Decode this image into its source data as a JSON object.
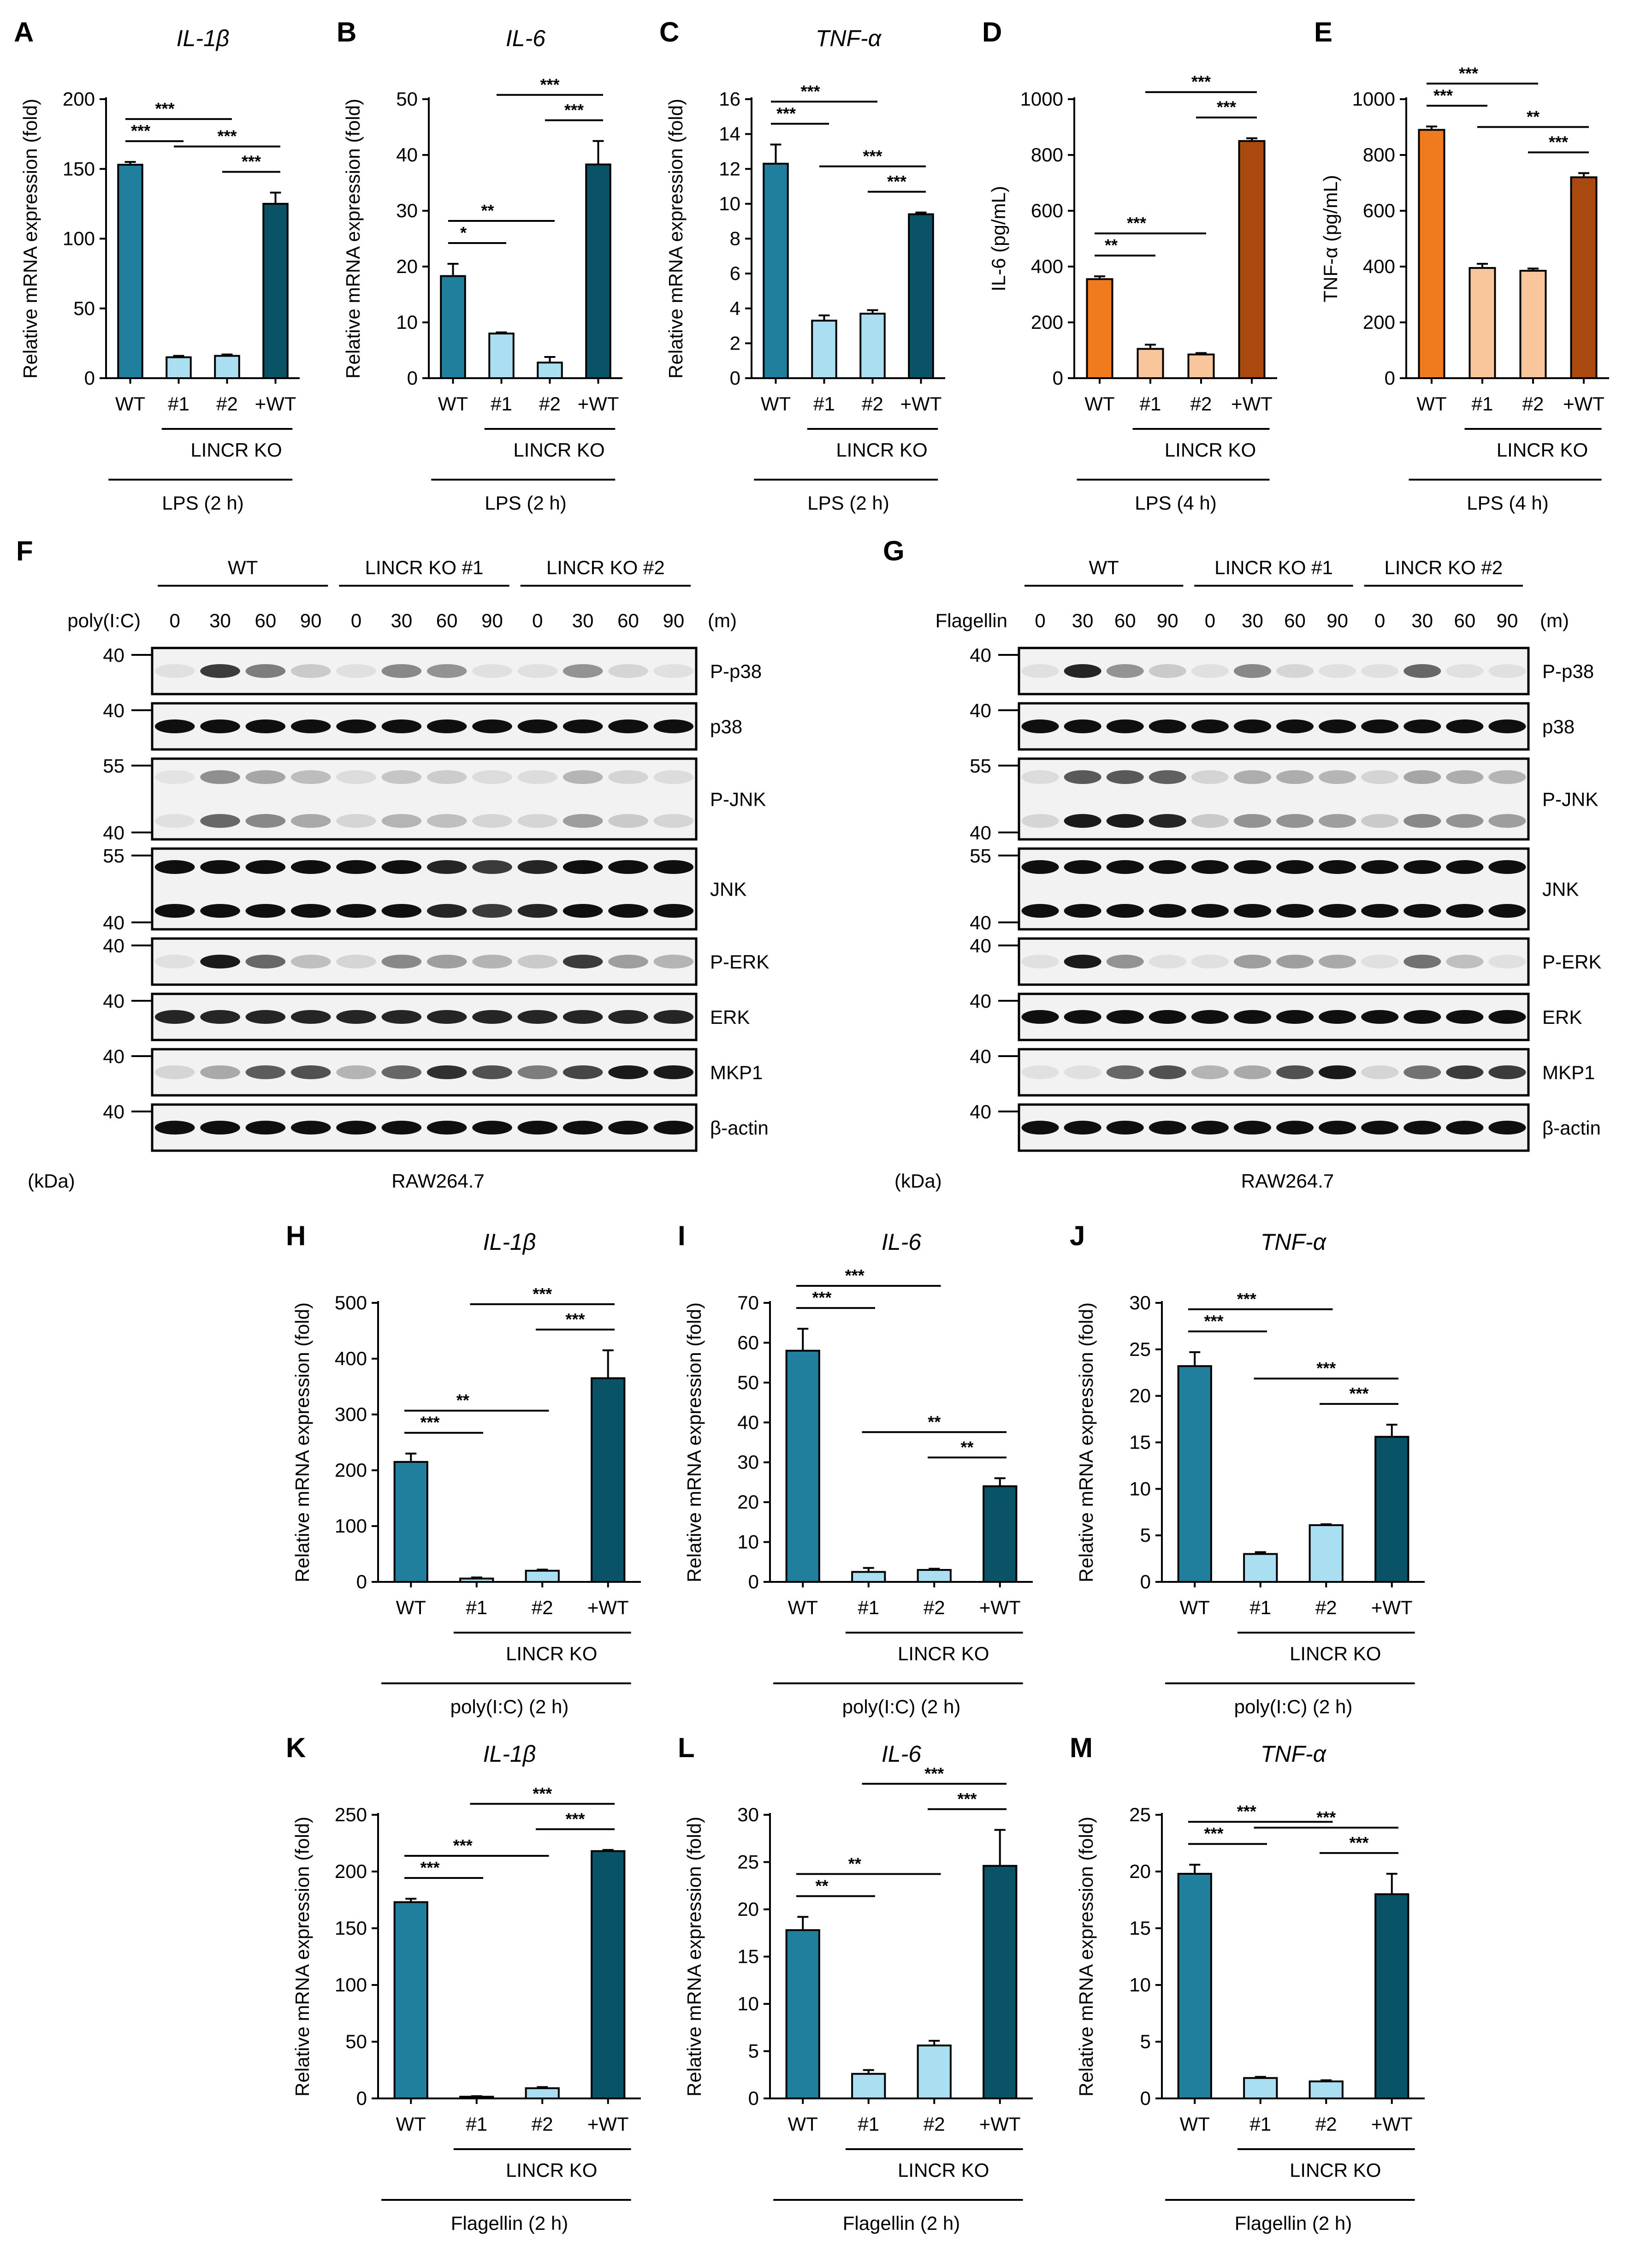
{
  "figure": {
    "colors": {
      "teal": "#1f7f9c",
      "light_blue": "#a9dff0",
      "dark_teal": "#0a5367",
      "orange": "#f07a1e",
      "peach": "#f9c59a",
      "brown": "#a9480f"
    },
    "common": {
      "x_labels": [
        "WT",
        "#1",
        "#2",
        "+WT"
      ],
      "group_label": "LINCR KO",
      "ylabel_mrna": "Relative mRNA expression (fold)"
    }
  },
  "chart_data": [
    {
      "letter": "A",
      "type": "bar",
      "title": "IL-1β",
      "ylabel": "Relative mRNA expression (fold)",
      "ylim": [
        0,
        200
      ],
      "yticks": [
        0,
        50,
        100,
        150,
        200
      ],
      "categories": [
        "WT",
        "#1",
        "#2",
        "+WT"
      ],
      "values": [
        153,
        15,
        16,
        125
      ],
      "errors": [
        2,
        1,
        1,
        8
      ],
      "condition": "LPS (2 h)",
      "bar_colors": [
        "teal",
        "light_blue",
        "light_blue",
        "dark_teal"
      ],
      "significance": [
        {
          "from": 0,
          "to": 1,
          "label": "***"
        },
        {
          "from": 0,
          "to": 2,
          "label": "***"
        },
        {
          "from": 2,
          "to": 3,
          "label": "***"
        },
        {
          "from": 1,
          "to": 3,
          "label": "***"
        }
      ]
    },
    {
      "letter": "B",
      "type": "bar",
      "title": "IL-6",
      "ylabel": "Relative mRNA expression (fold)",
      "ylim": [
        0,
        50
      ],
      "yticks": [
        0,
        10,
        20,
        30,
        40,
        50
      ],
      "categories": [
        "WT",
        "#1",
        "#2",
        "+WT"
      ],
      "values": [
        18.3,
        8,
        2.8,
        38.3
      ],
      "errors": [
        2.2,
        0.2,
        1,
        4.2
      ],
      "condition": "LPS (2 h)",
      "bar_colors": [
        "teal",
        "light_blue",
        "light_blue",
        "dark_teal"
      ],
      "significance": [
        {
          "from": 0,
          "to": 1,
          "label": "*"
        },
        {
          "from": 0,
          "to": 2,
          "label": "**"
        },
        {
          "from": 2,
          "to": 3,
          "label": "***"
        },
        {
          "from": 1,
          "to": 3,
          "label": "***"
        }
      ]
    },
    {
      "letter": "C",
      "type": "bar",
      "title": "TNF-α",
      "ylabel": "Relative mRNA expression (fold)",
      "ylim": [
        0,
        16
      ],
      "yticks": [
        0,
        2,
        4,
        6,
        8,
        10,
        12,
        14,
        16
      ],
      "categories": [
        "WT",
        "#1",
        "#2",
        "+WT"
      ],
      "values": [
        12.3,
        3.3,
        3.7,
        9.4
      ],
      "errors": [
        1.1,
        0.3,
        0.2,
        0.1
      ],
      "condition": "LPS (2 h)",
      "bar_colors": [
        "teal",
        "light_blue",
        "light_blue",
        "dark_teal"
      ],
      "significance": [
        {
          "from": 0,
          "to": 1,
          "label": "***"
        },
        {
          "from": 0,
          "to": 2,
          "label": "***"
        },
        {
          "from": 2,
          "to": 3,
          "label": "***"
        },
        {
          "from": 1,
          "to": 3,
          "label": "***"
        }
      ]
    },
    {
      "letter": "D",
      "type": "bar",
      "title": "",
      "ylabel": "IL-6 (pg/mL)",
      "ylim": [
        0,
        1000
      ],
      "yticks": [
        0,
        200,
        400,
        600,
        800,
        1000
      ],
      "categories": [
        "WT",
        "#1",
        "#2",
        "+WT"
      ],
      "values": [
        355,
        105,
        85,
        850
      ],
      "errors": [
        10,
        15,
        5,
        10
      ],
      "condition": "LPS (4 h)",
      "bar_colors": [
        "orange",
        "peach",
        "peach",
        "brown"
      ],
      "significance": [
        {
          "from": 0,
          "to": 1,
          "label": "**"
        },
        {
          "from": 0,
          "to": 2,
          "label": "***"
        },
        {
          "from": 2,
          "to": 3,
          "label": "***"
        },
        {
          "from": 1,
          "to": 3,
          "label": "***"
        }
      ]
    },
    {
      "letter": "E",
      "type": "bar",
      "title": "",
      "ylabel": "TNF-α (pg/mL)",
      "ylim": [
        0,
        1000
      ],
      "yticks": [
        0,
        200,
        400,
        600,
        800,
        1000
      ],
      "categories": [
        "WT",
        "#1",
        "#2",
        "+WT"
      ],
      "values": [
        890,
        395,
        385,
        720
      ],
      "errors": [
        12,
        15,
        8,
        15
      ],
      "condition": "LPS (4 h)",
      "bar_colors": [
        "orange",
        "peach",
        "peach",
        "brown"
      ],
      "significance": [
        {
          "from": 0,
          "to": 1,
          "label": "***"
        },
        {
          "from": 0,
          "to": 2,
          "label": "***"
        },
        {
          "from": 2,
          "to": 3,
          "label": "***"
        },
        {
          "from": 1,
          "to": 3,
          "label": "**"
        }
      ]
    },
    {
      "letter": "H",
      "type": "bar",
      "title": "IL-1β",
      "ylabel": "Relative mRNA expression (fold)",
      "ylim": [
        0,
        500
      ],
      "yticks": [
        0,
        100,
        200,
        300,
        400,
        500
      ],
      "categories": [
        "WT",
        "#1",
        "#2",
        "+WT"
      ],
      "values": [
        215,
        6,
        20,
        365
      ],
      "errors": [
        15,
        2,
        2,
        50
      ],
      "condition": "poly(I:C) (2 h)",
      "bar_colors": [
        "teal",
        "light_blue",
        "light_blue",
        "dark_teal"
      ],
      "significance": [
        {
          "from": 0,
          "to": 1,
          "label": "***"
        },
        {
          "from": 0,
          "to": 2,
          "label": "**"
        },
        {
          "from": 2,
          "to": 3,
          "label": "***"
        },
        {
          "from": 1,
          "to": 3,
          "label": "***"
        }
      ]
    },
    {
      "letter": "I",
      "type": "bar",
      "title": "IL-6",
      "ylabel": "Relative mRNA expression (fold)",
      "ylim": [
        0,
        70
      ],
      "yticks": [
        0,
        10,
        20,
        30,
        40,
        50,
        60,
        70
      ],
      "categories": [
        "WT",
        "#1",
        "#2",
        "+WT"
      ],
      "values": [
        58,
        2.5,
        3,
        24
      ],
      "errors": [
        5.5,
        1,
        0.3,
        2
      ],
      "condition": "poly(I:C) (2 h)",
      "bar_colors": [
        "teal",
        "light_blue",
        "light_blue",
        "dark_teal"
      ],
      "significance": [
        {
          "from": 0,
          "to": 1,
          "label": "***"
        },
        {
          "from": 0,
          "to": 2,
          "label": "***"
        },
        {
          "from": 2,
          "to": 3,
          "label": "**"
        },
        {
          "from": 1,
          "to": 3,
          "label": "**"
        }
      ]
    },
    {
      "letter": "J",
      "type": "bar",
      "title": "TNF-α",
      "ylabel": "Relative mRNA expression (fold)",
      "ylim": [
        0,
        30
      ],
      "yticks": [
        0,
        5,
        10,
        15,
        20,
        25,
        30
      ],
      "categories": [
        "WT",
        "#1",
        "#2",
        "+WT"
      ],
      "values": [
        23.2,
        3,
        6.1,
        15.6
      ],
      "errors": [
        1.5,
        0.2,
        0.1,
        1.3
      ],
      "condition": "poly(I:C) (2 h)",
      "bar_colors": [
        "teal",
        "light_blue",
        "light_blue",
        "dark_teal"
      ],
      "significance": [
        {
          "from": 0,
          "to": 1,
          "label": "***"
        },
        {
          "from": 0,
          "to": 2,
          "label": "***"
        },
        {
          "from": 2,
          "to": 3,
          "label": "***"
        },
        {
          "from": 1,
          "to": 3,
          "label": "***"
        }
      ]
    },
    {
      "letter": "K",
      "type": "bar",
      "title": "IL-1β",
      "ylabel": "Relative mRNA expression (fold)",
      "ylim": [
        0,
        250
      ],
      "yticks": [
        0,
        50,
        100,
        150,
        200,
        250
      ],
      "categories": [
        "WT",
        "#1",
        "#2",
        "+WT"
      ],
      "values": [
        173,
        1.5,
        9,
        218
      ],
      "errors": [
        3,
        0.5,
        1,
        1
      ],
      "condition": "Flagellin (2 h)",
      "bar_colors": [
        "teal",
        "light_blue",
        "light_blue",
        "dark_teal"
      ],
      "significance": [
        {
          "from": 0,
          "to": 1,
          "label": "***"
        },
        {
          "from": 0,
          "to": 2,
          "label": "***"
        },
        {
          "from": 2,
          "to": 3,
          "label": "***"
        },
        {
          "from": 1,
          "to": 3,
          "label": "***"
        }
      ]
    },
    {
      "letter": "L",
      "type": "bar",
      "title": "IL-6",
      "ylabel": "Relative mRNA expression (fold)",
      "ylim": [
        0,
        30
      ],
      "yticks": [
        0,
        5,
        10,
        15,
        20,
        25,
        30
      ],
      "categories": [
        "WT",
        "#1",
        "#2",
        "+WT"
      ],
      "values": [
        17.8,
        2.6,
        5.6,
        24.6
      ],
      "errors": [
        1.4,
        0.4,
        0.5,
        3.8
      ],
      "condition": "Flagellin (2 h)",
      "bar_colors": [
        "teal",
        "light_blue",
        "light_blue",
        "dark_teal"
      ],
      "significance": [
        {
          "from": 0,
          "to": 1,
          "label": "**"
        },
        {
          "from": 0,
          "to": 2,
          "label": "**"
        },
        {
          "from": 2,
          "to": 3,
          "label": "***"
        },
        {
          "from": 1,
          "to": 3,
          "label": "***"
        }
      ]
    },
    {
      "letter": "M",
      "type": "bar",
      "title": "TNF-α",
      "ylabel": "Relative mRNA expression (fold)",
      "ylim": [
        0,
        25
      ],
      "yticks": [
        0,
        5,
        10,
        15,
        20,
        25
      ],
      "categories": [
        "WT",
        "#1",
        "#2",
        "+WT"
      ],
      "values": [
        19.8,
        1.8,
        1.5,
        18
      ],
      "errors": [
        0.8,
        0.1,
        0.1,
        1.8
      ],
      "condition": "Flagellin (2 h)",
      "bar_colors": [
        "teal",
        "light_blue",
        "light_blue",
        "dark_teal"
      ],
      "significance": [
        {
          "from": 0,
          "to": 1,
          "label": "***"
        },
        {
          "from": 0,
          "to": 2,
          "label": "***"
        },
        {
          "from": 2,
          "to": 3,
          "label": "***"
        },
        {
          "from": 1,
          "to": 3,
          "label": "***"
        }
      ]
    }
  ],
  "blots": [
    {
      "letter": "F",
      "treatment": "poly(I:C)",
      "groups": [
        "WT",
        "LINCR KO #1",
        "LINCR KO #2"
      ],
      "timepoints": [
        "0",
        "30",
        "60",
        "90"
      ],
      "unit": "(m)",
      "kda_label": "(kDa)",
      "cell_line": "RAW264.7",
      "rows": [
        {
          "name": "P-p38",
          "markers": [
            "40"
          ],
          "bands": [
            [
              0.05,
              0.8,
              0.5,
              0.15
            ],
            [
              0.05,
              0.45,
              0.4,
              0.05
            ],
            [
              0.05,
              0.4,
              0.1,
              0.05
            ]
          ]
        },
        {
          "name": "p38",
          "markers": [
            "40"
          ],
          "bands": [
            [
              1,
              1,
              1,
              1
            ],
            [
              1,
              1,
              1,
              1
            ],
            [
              1,
              1,
              1,
              1
            ]
          ]
        },
        {
          "name": "P-JNK",
          "markers": [
            "55",
            "40"
          ],
          "bands": [
            [
              0.05,
              0.6,
              0.45,
              0.3
            ],
            [
              0.1,
              0.25,
              0.2,
              0.1
            ],
            [
              0.1,
              0.35,
              0.15,
              0.1
            ]
          ]
        },
        {
          "name": "JNK",
          "markers": [
            "55",
            "40"
          ],
          "bands": [
            [
              1,
              1,
              1,
              1
            ],
            [
              1,
              1,
              0.9,
              0.8
            ],
            [
              0.9,
              1,
              1,
              1
            ]
          ]
        },
        {
          "name": "P-ERK",
          "markers": [
            "40"
          ],
          "bands": [
            [
              0.05,
              0.95,
              0.6,
              0.2
            ],
            [
              0.1,
              0.45,
              0.35,
              0.25
            ],
            [
              0.15,
              0.8,
              0.35,
              0.25
            ]
          ]
        },
        {
          "name": "ERK",
          "markers": [
            "40"
          ],
          "bands": [
            [
              0.9,
              0.9,
              0.9,
              0.9
            ],
            [
              0.9,
              0.9,
              0.9,
              0.9
            ],
            [
              0.9,
              0.9,
              0.9,
              0.9
            ]
          ]
        },
        {
          "name": "MKP1",
          "markers": [
            "40"
          ],
          "bands": [
            [
              0.1,
              0.3,
              0.65,
              0.7
            ],
            [
              0.25,
              0.6,
              0.85,
              0.7
            ],
            [
              0.5,
              0.75,
              0.95,
              0.95
            ]
          ]
        },
        {
          "name": "β-actin",
          "markers": [
            "40"
          ],
          "bands": [
            [
              1,
              1,
              1,
              1
            ],
            [
              1,
              1,
              1,
              1
            ],
            [
              1,
              1,
              1,
              1
            ]
          ]
        }
      ]
    },
    {
      "letter": "G",
      "treatment": "Flagellin",
      "groups": [
        "WT",
        "LINCR KO #1",
        "LINCR KO #2"
      ],
      "timepoints": [
        "0",
        "30",
        "60",
        "90"
      ],
      "unit": "(m)",
      "kda_label": "(kDa)",
      "cell_line": "RAW264.7",
      "rows": [
        {
          "name": "P-p38",
          "markers": [
            "40"
          ],
          "bands": [
            [
              0.05,
              0.9,
              0.4,
              0.15
            ],
            [
              0.05,
              0.45,
              0.1,
              0.05
            ],
            [
              0.05,
              0.6,
              0.05,
              0.05
            ]
          ]
        },
        {
          "name": "p38",
          "markers": [
            "40"
          ],
          "bands": [
            [
              1,
              1,
              1,
              1
            ],
            [
              1,
              1,
              1,
              1
            ],
            [
              1,
              1,
              1,
              1
            ]
          ]
        },
        {
          "name": "P-JNK",
          "markers": [
            "55",
            "40"
          ],
          "bands": [
            [
              0.1,
              0.95,
              0.95,
              0.9
            ],
            [
              0.15,
              0.4,
              0.4,
              0.35
            ],
            [
              0.15,
              0.45,
              0.4,
              0.35
            ]
          ]
        },
        {
          "name": "JNK",
          "markers": [
            "55",
            "40"
          ],
          "bands": [
            [
              1,
              1,
              1,
              1
            ],
            [
              1,
              1,
              1,
              1
            ],
            [
              1,
              1,
              1,
              1
            ]
          ]
        },
        {
          "name": "P-ERK",
          "markers": [
            "40"
          ],
          "bands": [
            [
              0.05,
              0.95,
              0.4,
              0.05
            ],
            [
              0.05,
              0.35,
              0.35,
              0.3
            ],
            [
              0.05,
              0.55,
              0.2,
              0.05
            ]
          ]
        },
        {
          "name": "ERK",
          "markers": [
            "40"
          ],
          "bands": [
            [
              1,
              1,
              1,
              1
            ],
            [
              1,
              1,
              1,
              1
            ],
            [
              1,
              1,
              1,
              1
            ]
          ]
        },
        {
          "name": "MKP1",
          "markers": [
            "40"
          ],
          "bands": [
            [
              0.05,
              0.05,
              0.6,
              0.7
            ],
            [
              0.25,
              0.3,
              0.7,
              0.95
            ],
            [
              0.1,
              0.55,
              0.8,
              0.8
            ]
          ]
        },
        {
          "name": "β-actin",
          "markers": [
            "40"
          ],
          "bands": [
            [
              1,
              1,
              1,
              1
            ],
            [
              1,
              1,
              1,
              1
            ],
            [
              1,
              1,
              1,
              1
            ]
          ]
        }
      ]
    }
  ]
}
